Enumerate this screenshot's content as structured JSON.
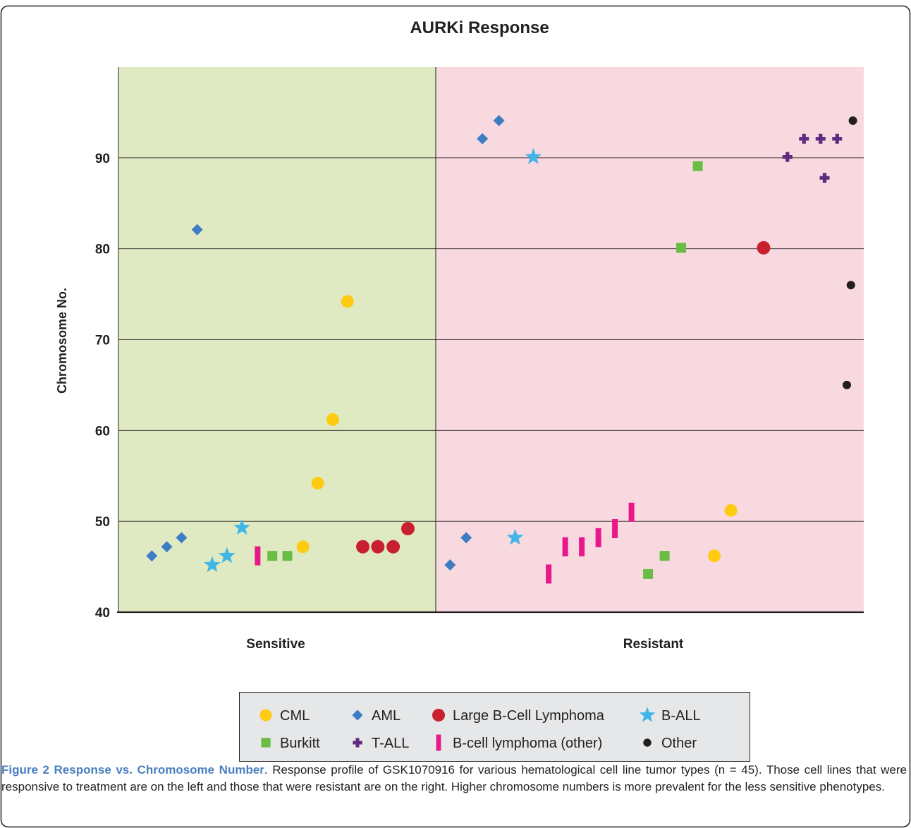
{
  "chart_data": {
    "type": "scatter",
    "title": "AURKi Response",
    "ylabel": "Chromosome No.",
    "ylim": [
      40,
      100
    ],
    "yticks": [
      40,
      50,
      60,
      70,
      80,
      90
    ],
    "grid": true,
    "groups": [
      "Sensitive",
      "Resistant"
    ],
    "group_colors": {
      "Sensitive": "#dfeac3",
      "Resistant": "#f9d9e0"
    },
    "legend_position": "bottom",
    "series": [
      {
        "name": "CML",
        "shape": "circle",
        "color": "#fecb12",
        "points": [
          {
            "group": "Sensitive",
            "pos": 0.585,
            "y": 47.2
          },
          {
            "group": "Sensitive",
            "pos": 0.632,
            "y": 54.2
          },
          {
            "group": "Sensitive",
            "pos": 0.68,
            "y": 61.2
          },
          {
            "group": "Sensitive",
            "pos": 0.727,
            "y": 74.2
          },
          {
            "group": "Resistant",
            "pos": 0.672,
            "y": 46.2
          },
          {
            "group": "Resistant",
            "pos": 0.713,
            "y": 51.2
          }
        ]
      },
      {
        "name": "AML",
        "shape": "diamond",
        "color": "#3e7cc4",
        "points": [
          {
            "group": "Sensitive",
            "pos": 0.102,
            "y": 46.2
          },
          {
            "group": "Sensitive",
            "pos": 0.15,
            "y": 47.2
          },
          {
            "group": "Sensitive",
            "pos": 0.197,
            "y": 48.2
          },
          {
            "group": "Sensitive",
            "pos": 0.247,
            "y": 82.1
          },
          {
            "group": "Resistant",
            "pos": 0.018,
            "y": 45.2
          },
          {
            "group": "Resistant",
            "pos": 0.058,
            "y": 48.2
          },
          {
            "group": "Resistant",
            "pos": 0.098,
            "y": 92.1
          },
          {
            "group": "Resistant",
            "pos": 0.139,
            "y": 94.1
          }
        ]
      },
      {
        "name": "Large B-Cell Lymphoma",
        "shape": "circle-large",
        "color": "#c9202f",
        "points": [
          {
            "group": "Sensitive",
            "pos": 0.776,
            "y": 47.2
          },
          {
            "group": "Sensitive",
            "pos": 0.824,
            "y": 47.2
          },
          {
            "group": "Sensitive",
            "pos": 0.873,
            "y": 47.2
          },
          {
            "group": "Sensitive",
            "pos": 0.92,
            "y": 49.2
          },
          {
            "group": "Resistant",
            "pos": 0.794,
            "y": 80.1
          }
        ]
      },
      {
        "name": "B-ALL",
        "shape": "star",
        "color": "#40b6e6",
        "points": [
          {
            "group": "Sensitive",
            "pos": 0.295,
            "y": 45.2
          },
          {
            "group": "Sensitive",
            "pos": 0.342,
            "y": 46.2
          },
          {
            "group": "Sensitive",
            "pos": 0.39,
            "y": 49.3
          },
          {
            "group": "Resistant",
            "pos": 0.179,
            "y": 48.2
          },
          {
            "group": "Resistant",
            "pos": 0.224,
            "y": 90.1
          }
        ]
      },
      {
        "name": "Burkitt",
        "shape": "square",
        "color": "#69bd45",
        "points": [
          {
            "group": "Sensitive",
            "pos": 0.487,
            "y": 46.2
          },
          {
            "group": "Sensitive",
            "pos": 0.535,
            "y": 46.2
          },
          {
            "group": "Resistant",
            "pos": 0.508,
            "y": 44.2
          },
          {
            "group": "Resistant",
            "pos": 0.549,
            "y": 46.2
          },
          {
            "group": "Resistant",
            "pos": 0.59,
            "y": 80.1
          },
          {
            "group": "Resistant",
            "pos": 0.631,
            "y": 89.1
          }
        ]
      },
      {
        "name": "T-ALL",
        "shape": "plus",
        "color": "#5e2b7e",
        "points": [
          {
            "group": "Resistant",
            "pos": 0.853,
            "y": 90.1
          },
          {
            "group": "Resistant",
            "pos": 0.894,
            "y": 92.1
          },
          {
            "group": "Resistant",
            "pos": 0.935,
            "y": 92.1
          },
          {
            "group": "Resistant",
            "pos": 0.945,
            "y": 87.8
          },
          {
            "group": "Resistant",
            "pos": 0.976,
            "y": 92.1
          }
        ]
      },
      {
        "name": "B-cell lymphoma (other)",
        "shape": "bar",
        "color": "#e8178a",
        "points": [
          {
            "group": "Sensitive",
            "pos": 0.44,
            "y": 46.2
          },
          {
            "group": "Resistant",
            "pos": 0.262,
            "y": 44.2
          },
          {
            "group": "Resistant",
            "pos": 0.303,
            "y": 47.2
          },
          {
            "group": "Resistant",
            "pos": 0.344,
            "y": 47.2
          },
          {
            "group": "Resistant",
            "pos": 0.385,
            "y": 48.2
          },
          {
            "group": "Resistant",
            "pos": 0.426,
            "y": 49.2
          },
          {
            "group": "Resistant",
            "pos": 0.467,
            "y": 51.0
          }
        ]
      },
      {
        "name": "Other",
        "shape": "dot",
        "color": "#231f20",
        "points": [
          {
            "group": "Resistant",
            "pos": 1.0,
            "y": 65.0
          },
          {
            "group": "Resistant",
            "pos": 1.01,
            "y": 76.0
          },
          {
            "group": "Resistant",
            "pos": 1.015,
            "y": 94.1
          }
        ]
      }
    ],
    "legend": {
      "rows": [
        [
          "CML",
          "AML",
          "Large B-Cell Lymphoma",
          "B-ALL"
        ],
        [
          "Burkitt",
          "T-ALL",
          "B-cell lymphoma (other)",
          "Other"
        ]
      ]
    }
  },
  "caption": {
    "title": "Figure 2 Response vs. Chromosome Number",
    "text": ". Response profile of GSK1070916 for various hematological cell line tumor types (n = 45). Those cell lines that were responsive to treatment are on the left and those that were resistant are on the right. Higher chromosome numbers is more prevalent for the less sensitive phenotypes."
  }
}
